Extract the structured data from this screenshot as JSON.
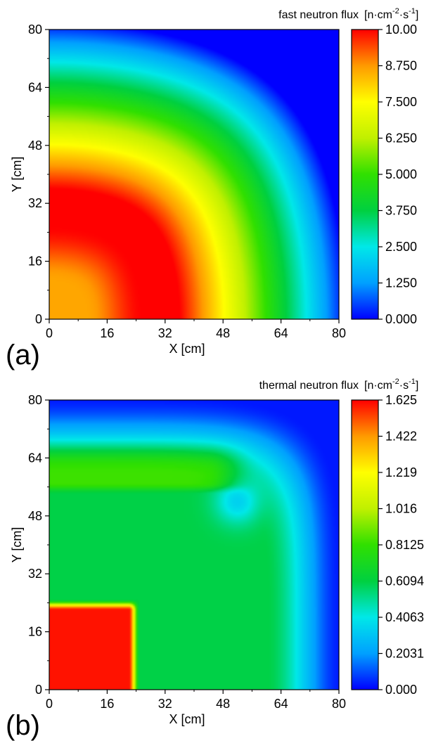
{
  "chart_data": [
    {
      "type": "heatmap",
      "panel_label": "(a)",
      "title": "fast neutron flux",
      "unit_parts": {
        "pre": "[n·cm",
        "exp1": "-2",
        "mid": "·s",
        "exp2": "-1",
        "post": "]"
      },
      "xlabel": "X  [cm]",
      "ylabel": "Y  [cm]",
      "xlim": [
        0,
        80
      ],
      "ylim": [
        0,
        80
      ],
      "x_ticks": [
        "0",
        "16",
        "32",
        "48",
        "64",
        "80"
      ],
      "y_ticks": [
        "0",
        "16",
        "32",
        "48",
        "64",
        "80"
      ],
      "colorbar_range": [
        0,
        10
      ],
      "colorbar_ticks": [
        "0.000",
        "1.250",
        "2.500",
        "3.750",
        "5.000",
        "6.250",
        "7.500",
        "8.750",
        "10.00"
      ],
      "colormap": [
        "#0000ff",
        "#00a0ff",
        "#00e8e8",
        "#00d040",
        "#30e000",
        "#c0f000",
        "#ffff00",
        "#ff9a00",
        "#ff0000"
      ],
      "field_description": "core region 0-24 cm shows ~8.6 (yellow-orange), surrounding ring peaks ~10 near 30 cm radius, falls to ~0 at 80 cm"
    },
    {
      "type": "heatmap",
      "panel_label": "(b)",
      "title": "thermal neutron flux",
      "unit_parts": {
        "pre": "[n·cm",
        "exp1": "-2",
        "mid": "·s",
        "exp2": "-1",
        "post": "]"
      },
      "xlabel": "X  [cm]",
      "ylabel": "Y  [cm]",
      "xlim": [
        0,
        80
      ],
      "ylim": [
        0,
        80
      ],
      "x_ticks": [
        "0",
        "16",
        "32",
        "48",
        "64",
        "80"
      ],
      "y_ticks": [
        "0",
        "16",
        "32",
        "48",
        "64",
        "80"
      ],
      "colorbar_range": [
        0,
        1.625
      ],
      "colorbar_ticks": [
        "0.000",
        "0.2031",
        "0.4063",
        "0.6094",
        "0.8125",
        "1.016",
        "1.219",
        "1.422",
        "1.625"
      ],
      "colormap": [
        "#0000ff",
        "#00a0ff",
        "#00e8e8",
        "#00d040",
        "#30e000",
        "#c0f000",
        "#ffff00",
        "#ff9a00",
        "#ff0000"
      ],
      "field_description": "core block 0-24 cm at ~1.6 (red), moderator ~0.6 (green), band near y 56-70 cm ~0.8, dip region near (50,50) ~0.35, edge falls to 0 at 80 cm"
    }
  ]
}
